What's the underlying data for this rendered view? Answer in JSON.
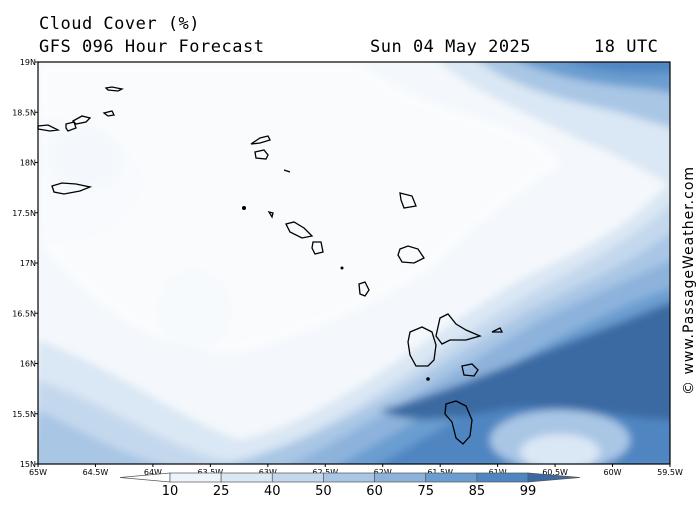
{
  "header": {
    "title": "Cloud Cover (%)",
    "subtitle": "GFS 096 Hour Forecast",
    "date": "Sun 04 May 2025",
    "time": "18 UTC"
  },
  "credit": "© www.PassageWeather.com",
  "map": {
    "lon_ticks": [
      "65W",
      "64.5W",
      "64W",
      "63.5W",
      "63W",
      "62.5W",
      "62W",
      "61.5W",
      "61W",
      "60.5W",
      "60W",
      "59.5W"
    ],
    "lat_ticks": [
      "19N",
      "18.5N",
      "18N",
      "17.5N",
      "17N",
      "16.5N",
      "16N",
      "15.5N",
      "15N"
    ],
    "coastline_color": "#000000"
  },
  "legend": {
    "values": [
      "10",
      "25",
      "40",
      "50",
      "60",
      "75",
      "85",
      "99"
    ],
    "colors": [
      "#ffffff",
      "#eef4fb",
      "#dae7f4",
      "#c4d8ed",
      "#a9c6e5",
      "#8db3dc",
      "#6b9dd0",
      "#4f86c2",
      "#3b6aa3"
    ]
  }
}
